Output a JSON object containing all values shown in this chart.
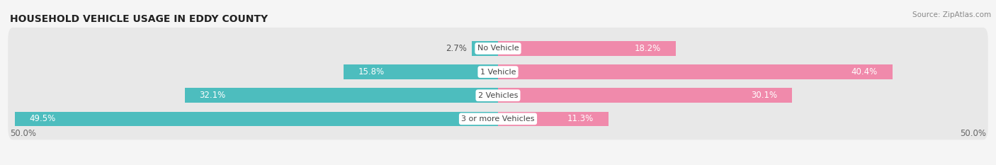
{
  "title": "HOUSEHOLD VEHICLE USAGE IN EDDY COUNTY",
  "source": "Source: ZipAtlas.com",
  "categories": [
    "No Vehicle",
    "1 Vehicle",
    "2 Vehicles",
    "3 or more Vehicles"
  ],
  "owner_values": [
    2.7,
    15.8,
    32.1,
    49.5
  ],
  "renter_values": [
    18.2,
    40.4,
    30.1,
    11.3
  ],
  "owner_color": "#4dbdbe",
  "renter_color": "#f08aab",
  "bg_color": "#f5f5f5",
  "row_bg_color": "#e8e8e8",
  "axis_limit": 50.0,
  "title_fontsize": 10,
  "source_fontsize": 7.5,
  "label_fontsize": 8.5,
  "category_fontsize": 8,
  "owner_label_inside_threshold": 5.0,
  "renter_label_inside_threshold": 8.0
}
